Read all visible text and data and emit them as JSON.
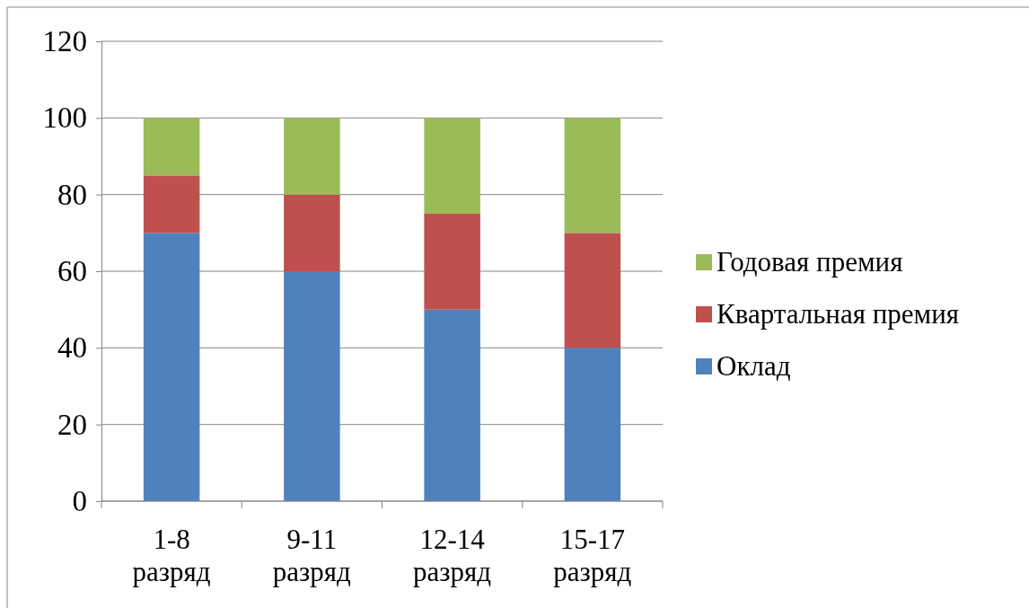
{
  "chart_data": {
    "type": "bar",
    "stacked": true,
    "categories": [
      "1-8 разряд",
      "9-11 разряд",
      "12-14 разряд",
      "15-17 разряд"
    ],
    "series": [
      {
        "name": "Оклад",
        "color": "#4f81bd",
        "values": [
          70,
          60,
          50,
          40
        ]
      },
      {
        "name": "Квартальная премия",
        "color": "#c0504d",
        "values": [
          15,
          20,
          25,
          30
        ]
      },
      {
        "name": "Годовая премия",
        "color": "#9bbb59",
        "values": [
          15,
          20,
          25,
          30
        ]
      }
    ],
    "ylim": [
      0,
      120
    ],
    "yticks": [
      0,
      20,
      40,
      60,
      80,
      100,
      120
    ],
    "grid": "y",
    "legend": "right"
  }
}
